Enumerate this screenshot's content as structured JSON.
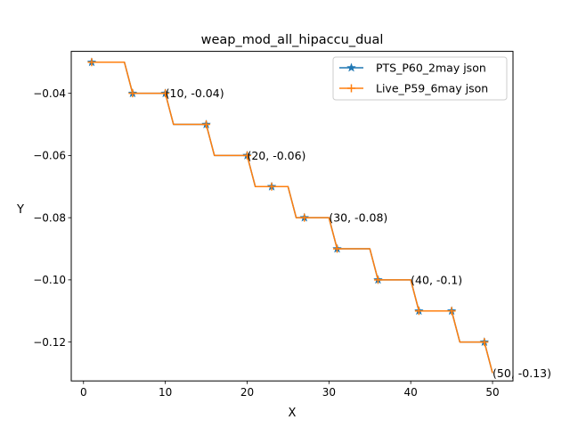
{
  "chart_data": {
    "type": "line",
    "title": "weap_mod_all_hipaccu_dual",
    "xlabel": "X",
    "ylabel": "Y",
    "xlim": [
      -1.5,
      52.5
    ],
    "ylim": [
      -0.1325,
      -0.0265
    ],
    "xticks": [
      0,
      10,
      20,
      30,
      40,
      50
    ],
    "yticks": [
      -0.04,
      -0.06,
      -0.08,
      -0.1,
      -0.12
    ],
    "ytick_labels": [
      "−0.04",
      "−0.06",
      "−0.08",
      "−0.10",
      "−0.12"
    ],
    "grid": false,
    "legend_position": "top-right",
    "x": [
      1,
      2,
      3,
      4,
      5,
      6,
      7,
      8,
      9,
      10,
      11,
      12,
      13,
      14,
      15,
      16,
      17,
      18,
      19,
      20,
      21,
      22,
      23,
      24,
      25,
      26,
      27,
      28,
      29,
      30,
      31,
      32,
      33,
      34,
      35,
      36,
      37,
      38,
      39,
      40,
      41,
      42,
      43,
      44,
      45,
      46,
      47,
      48,
      49,
      50
    ],
    "series": [
      {
        "name": "PTS_P60_2may json",
        "color": "#1f77b4",
        "marker": "star",
        "marker_x": [
          1,
          6,
          10,
          15,
          20,
          23,
          27,
          31,
          36,
          41,
          45,
          49
        ],
        "values": [
          -0.03,
          -0.03,
          -0.03,
          -0.03,
          -0.03,
          -0.04,
          -0.04,
          -0.04,
          -0.04,
          -0.04,
          -0.05,
          -0.05,
          -0.05,
          -0.05,
          -0.05,
          -0.06,
          -0.06,
          -0.06,
          -0.06,
          -0.06,
          -0.07,
          -0.07,
          -0.07,
          -0.07,
          -0.07,
          -0.08,
          -0.08,
          -0.08,
          -0.08,
          -0.08,
          -0.09,
          -0.09,
          -0.09,
          -0.09,
          -0.09,
          -0.1,
          -0.1,
          -0.1,
          -0.1,
          -0.1,
          -0.11,
          -0.11,
          -0.11,
          -0.11,
          -0.11,
          -0.12,
          -0.12,
          -0.12,
          -0.12,
          -0.13
        ]
      },
      {
        "name": "Live_P59_6may json",
        "color": "#ff7f0e",
        "marker": "plus",
        "marker_x": [
          1,
          6,
          10,
          15,
          20,
          23,
          27,
          31,
          36,
          41,
          45,
          49
        ],
        "values": [
          -0.03,
          -0.03,
          -0.03,
          -0.03,
          -0.03,
          -0.04,
          -0.04,
          -0.04,
          -0.04,
          -0.04,
          -0.05,
          -0.05,
          -0.05,
          -0.05,
          -0.05,
          -0.06,
          -0.06,
          -0.06,
          -0.06,
          -0.06,
          -0.07,
          -0.07,
          -0.07,
          -0.07,
          -0.07,
          -0.08,
          -0.08,
          -0.08,
          -0.08,
          -0.08,
          -0.09,
          -0.09,
          -0.09,
          -0.09,
          -0.09,
          -0.1,
          -0.1,
          -0.1,
          -0.1,
          -0.1,
          -0.11,
          -0.11,
          -0.11,
          -0.11,
          -0.11,
          -0.12,
          -0.12,
          -0.12,
          -0.12,
          -0.13
        ]
      }
    ],
    "annotations": [
      {
        "x": 10,
        "y": -0.04,
        "text": "(10, -0.04)"
      },
      {
        "x": 20,
        "y": -0.06,
        "text": "(20, -0.06)"
      },
      {
        "x": 30,
        "y": -0.08,
        "text": "(30, -0.08)"
      },
      {
        "x": 40,
        "y": -0.1,
        "text": "(40, -0.1)"
      },
      {
        "x": 50,
        "y": -0.13,
        "text": "(50, -0.13)"
      }
    ]
  }
}
